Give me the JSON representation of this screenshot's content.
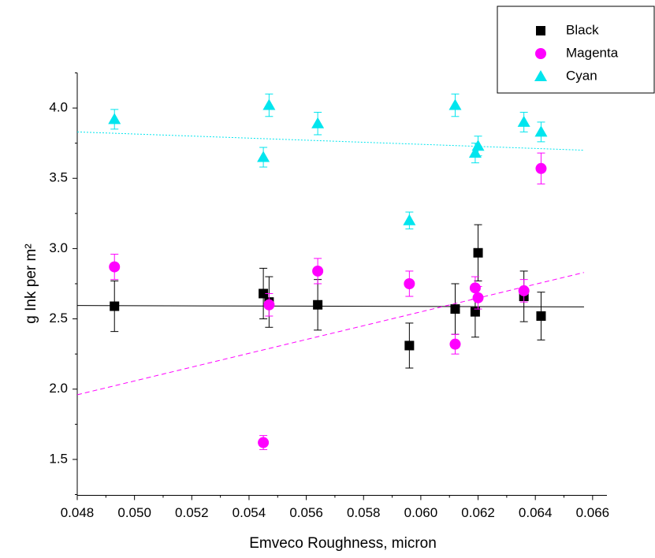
{
  "chart_data": {
    "type": "scatter",
    "x_label": "Emveco Roughness, micron",
    "y_label": "g Ink per m²",
    "xlim": [
      0.048,
      0.0665
    ],
    "ylim": [
      1.25,
      4.25
    ],
    "xticks": [
      0.048,
      {
        "value": 0.05,
        "label": "0.050"
      },
      0.052,
      0.054,
      0.056,
      0.058,
      {
        "value": 0.06,
        "label": "0.060"
      },
      0.062,
      0.064,
      0.066
    ],
    "yticks": [
      1.5,
      {
        "value": 2.0,
        "label": "2.0"
      },
      2.5,
      {
        "value": 3.0,
        "label": "3.0"
      },
      3.5,
      {
        "value": 4.0,
        "label": "4.0"
      }
    ],
    "legend": "top-right",
    "series": [
      {
        "name": "Black",
        "color": "#000000",
        "marker": "square",
        "trend_style": "solid",
        "x": [
          0.0493,
          0.0545,
          0.0547,
          0.0564,
          0.0596,
          0.0612,
          0.0619,
          0.062,
          0.0636,
          0.0642
        ],
        "values": [
          2.59,
          2.68,
          2.62,
          2.6,
          2.31,
          2.57,
          2.55,
          2.97,
          2.66,
          2.52
        ],
        "errors": [
          0.18,
          0.18,
          0.18,
          0.18,
          0.16,
          0.18,
          0.18,
          0.2,
          0.18,
          0.17
        ],
        "trend": {
          "x": [
            0.048,
            0.0657
          ],
          "y": [
            2.595,
            2.585
          ]
        }
      },
      {
        "name": "Magenta",
        "color": "#ff00ff",
        "marker": "circle",
        "trend_style": "dashed",
        "x": [
          0.0493,
          0.0545,
          0.0547,
          0.0564,
          0.0596,
          0.0612,
          0.0619,
          0.062,
          0.0636,
          0.0642
        ],
        "values": [
          2.87,
          1.62,
          2.6,
          2.84,
          2.75,
          2.32,
          2.72,
          2.65,
          2.7,
          3.57
        ],
        "errors": [
          0.09,
          0.05,
          0.08,
          0.09,
          0.09,
          0.07,
          0.08,
          0.08,
          0.08,
          0.11
        ],
        "trend": {
          "x": [
            0.048,
            0.0657
          ],
          "y": [
            1.96,
            2.83
          ]
        }
      },
      {
        "name": "Cyan",
        "color": "#00e5ee",
        "marker": "triangle",
        "trend_style": "dotted",
        "x": [
          0.0493,
          0.0545,
          0.0547,
          0.0564,
          0.0596,
          0.0612,
          0.0619,
          0.062,
          0.0636,
          0.0642
        ],
        "values": [
          3.92,
          3.65,
          4.02,
          3.89,
          3.2,
          4.02,
          3.68,
          3.73,
          3.9,
          3.83
        ],
        "errors": [
          0.07,
          0.07,
          0.08,
          0.08,
          0.06,
          0.08,
          0.07,
          0.07,
          0.07,
          0.07
        ],
        "trend": {
          "x": [
            0.048,
            0.0657
          ],
          "y": [
            3.83,
            3.7
          ]
        }
      }
    ]
  }
}
